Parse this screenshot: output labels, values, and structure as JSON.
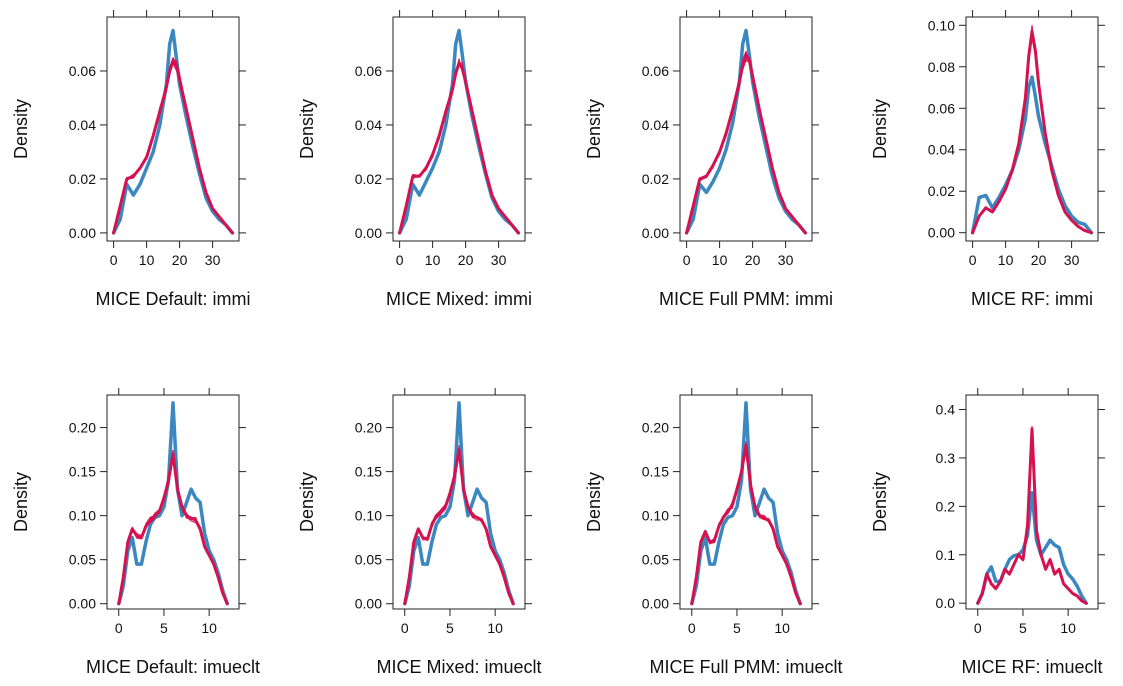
{
  "colors": {
    "observed": "#3b88c0",
    "imputed": "#d6114f"
  },
  "chart_data": [
    {
      "type": "line",
      "title": "MICE Default: immi",
      "xlabel": "MICE Default: immi",
      "ylabel": "Density",
      "xlim": [
        -2,
        38
      ],
      "ylim": [
        -0.003,
        0.08
      ],
      "xticks": [
        0,
        10,
        20,
        30
      ],
      "yticks": [
        0,
        0.02,
        0.04,
        0.06
      ],
      "ytick_labels": [
        "0.00",
        "0.02",
        "0.04",
        "0.06"
      ],
      "series": [
        {
          "role": "observed",
          "x": [
            0,
            2,
            4,
            6,
            8,
            10,
            12,
            14,
            16,
            17,
            18,
            19,
            20,
            22,
            24,
            26,
            28,
            30,
            32,
            34,
            36
          ],
          "y": [
            0,
            0.005,
            0.018,
            0.014,
            0.018,
            0.024,
            0.03,
            0.04,
            0.055,
            0.07,
            0.075,
            0.065,
            0.055,
            0.043,
            0.032,
            0.022,
            0.013,
            0.008,
            0.005,
            0.003,
            0
          ]
        },
        {
          "role": "imputed",
          "x": [
            0,
            2,
            4,
            6,
            8,
            10,
            12,
            14,
            16,
            17,
            18,
            19,
            20,
            22,
            24,
            26,
            28,
            30,
            32,
            34,
            36
          ],
          "y": [
            0,
            0.01,
            0.02,
            0.021,
            0.024,
            0.028,
            0.036,
            0.045,
            0.054,
            0.06,
            0.064,
            0.062,
            0.057,
            0.046,
            0.035,
            0.024,
            0.015,
            0.009,
            0.006,
            0.003,
            0
          ]
        }
      ]
    },
    {
      "type": "line",
      "title": "MICE Mixed: immi",
      "xlabel": "MICE Mixed: immi",
      "ylabel": "Density",
      "xlim": [
        -2,
        38
      ],
      "ylim": [
        -0.003,
        0.08
      ],
      "xticks": [
        0,
        10,
        20,
        30
      ],
      "yticks": [
        0,
        0.02,
        0.04,
        0.06
      ],
      "ytick_labels": [
        "0.00",
        "0.02",
        "0.04",
        "0.06"
      ],
      "series": [
        {
          "role": "observed",
          "x": [
            0,
            2,
            4,
            6,
            8,
            10,
            12,
            14,
            16,
            17,
            18,
            19,
            20,
            22,
            24,
            26,
            28,
            30,
            32,
            34,
            36
          ],
          "y": [
            0,
            0.005,
            0.018,
            0.014,
            0.019,
            0.024,
            0.03,
            0.04,
            0.055,
            0.07,
            0.075,
            0.066,
            0.056,
            0.043,
            0.032,
            0.022,
            0.013,
            0.008,
            0.005,
            0.003,
            0
          ]
        },
        {
          "role": "imputed",
          "x": [
            0,
            2,
            4,
            6,
            8,
            10,
            12,
            14,
            16,
            17,
            18,
            19,
            20,
            22,
            24,
            26,
            28,
            30,
            32,
            34,
            36
          ],
          "y": [
            0,
            0.01,
            0.021,
            0.021,
            0.024,
            0.029,
            0.036,
            0.045,
            0.053,
            0.059,
            0.063,
            0.061,
            0.056,
            0.045,
            0.034,
            0.023,
            0.014,
            0.009,
            0.006,
            0.003,
            0
          ]
        }
      ]
    },
    {
      "type": "line",
      "title": "MICE Full PMM: immi",
      "xlabel": "MICE Full PMM: immi",
      "ylabel": "Density",
      "xlim": [
        -2,
        38
      ],
      "ylim": [
        -0.003,
        0.08
      ],
      "xticks": [
        0,
        10,
        20,
        30
      ],
      "yticks": [
        0,
        0.02,
        0.04,
        0.06
      ],
      "ytick_labels": [
        "0.00",
        "0.02",
        "0.04",
        "0.06"
      ],
      "series": [
        {
          "role": "observed",
          "x": [
            0,
            2,
            4,
            6,
            8,
            10,
            12,
            14,
            16,
            17,
            18,
            19,
            20,
            22,
            24,
            26,
            28,
            30,
            32,
            34,
            36
          ],
          "y": [
            0,
            0.005,
            0.018,
            0.015,
            0.019,
            0.024,
            0.031,
            0.041,
            0.056,
            0.07,
            0.075,
            0.066,
            0.056,
            0.043,
            0.032,
            0.021,
            0.013,
            0.008,
            0.005,
            0.003,
            0
          ]
        },
        {
          "role": "imputed",
          "x": [
            0,
            2,
            4,
            6,
            8,
            10,
            12,
            14,
            16,
            17,
            18,
            19,
            20,
            22,
            24,
            26,
            28,
            30,
            32,
            34,
            36
          ],
          "y": [
            0,
            0.01,
            0.02,
            0.021,
            0.025,
            0.03,
            0.037,
            0.046,
            0.056,
            0.062,
            0.066,
            0.064,
            0.058,
            0.046,
            0.035,
            0.024,
            0.015,
            0.009,
            0.006,
            0.003,
            0
          ]
        }
      ]
    },
    {
      "type": "line",
      "title": "MICE RF: immi",
      "xlabel": "MICE RF: immi",
      "ylabel": "Density",
      "xlim": [
        -2,
        38
      ],
      "ylim": [
        -0.004,
        0.104
      ],
      "xticks": [
        0,
        10,
        20,
        30
      ],
      "yticks": [
        0,
        0.02,
        0.04,
        0.06,
        0.08,
        0.1
      ],
      "ytick_labels": [
        "0.00",
        "0.02",
        "0.04",
        "0.06",
        "0.08",
        "0.10"
      ],
      "series": [
        {
          "role": "observed",
          "x": [
            0,
            2,
            4,
            6,
            8,
            10,
            12,
            14,
            16,
            17,
            18,
            19,
            20,
            22,
            24,
            26,
            28,
            30,
            32,
            34,
            36
          ],
          "y": [
            0,
            0.017,
            0.018,
            0.012,
            0.017,
            0.023,
            0.03,
            0.04,
            0.055,
            0.07,
            0.075,
            0.066,
            0.056,
            0.043,
            0.032,
            0.021,
            0.013,
            0.008,
            0.005,
            0.004,
            0
          ]
        },
        {
          "role": "imputed",
          "x": [
            0,
            2,
            4,
            6,
            8,
            10,
            12,
            14,
            16,
            17,
            18,
            19,
            20,
            22,
            24,
            26,
            28,
            30,
            32,
            34,
            36
          ],
          "y": [
            0,
            0.008,
            0.012,
            0.01,
            0.015,
            0.021,
            0.03,
            0.043,
            0.065,
            0.085,
            0.097,
            0.088,
            0.072,
            0.048,
            0.03,
            0.018,
            0.01,
            0.006,
            0.003,
            0.001,
            0
          ]
        }
      ]
    },
    {
      "type": "line",
      "title": "MICE Default: imueclt",
      "xlabel": "MICE Default: imueclt",
      "ylabel": "Density",
      "xlim": [
        -1.3,
        13.3
      ],
      "ylim": [
        -0.006,
        0.237
      ],
      "xticks": [
        0,
        5,
        10
      ],
      "yticks": [
        0,
        0.05,
        0.1,
        0.15,
        0.2
      ],
      "ytick_labels": [
        "0.00",
        "0.05",
        "0.10",
        "0.15",
        "0.20"
      ],
      "series": [
        {
          "role": "observed",
          "x": [
            0,
            0.5,
            1,
            1.5,
            2,
            2.5,
            3,
            3.5,
            4,
            4.5,
            5,
            5.5,
            6,
            6.5,
            7,
            7.5,
            8,
            8.5,
            9,
            9.5,
            10,
            10.5,
            11,
            11.5,
            12
          ],
          "y": [
            0,
            0.02,
            0.06,
            0.075,
            0.045,
            0.045,
            0.07,
            0.09,
            0.098,
            0.1,
            0.11,
            0.14,
            0.228,
            0.13,
            0.1,
            0.115,
            0.13,
            0.12,
            0.115,
            0.08,
            0.06,
            0.05,
            0.035,
            0.015,
            0
          ]
        },
        {
          "role": "imputed",
          "x": [
            0,
            0.5,
            1,
            1.5,
            2,
            2.5,
            3,
            3.5,
            4,
            4.5,
            5,
            5.5,
            6,
            6.5,
            7,
            7.5,
            8,
            8.5,
            9,
            9.5,
            10,
            10.5,
            11,
            11.5,
            12
          ],
          "y": [
            0,
            0.03,
            0.07,
            0.085,
            0.077,
            0.075,
            0.088,
            0.095,
            0.1,
            0.105,
            0.12,
            0.14,
            0.17,
            0.13,
            0.11,
            0.1,
            0.097,
            0.095,
            0.085,
            0.065,
            0.055,
            0.045,
            0.03,
            0.012,
            0
          ]
        }
      ]
    },
    {
      "type": "line",
      "title": "MICE Mixed: imueclt",
      "xlabel": "MICE Mixed: imueclt",
      "ylabel": "Density",
      "xlim": [
        -1.3,
        13.3
      ],
      "ylim": [
        -0.006,
        0.237
      ],
      "xticks": [
        0,
        5,
        10
      ],
      "yticks": [
        0,
        0.05,
        0.1,
        0.15,
        0.2
      ],
      "ytick_labels": [
        "0.00",
        "0.05",
        "0.10",
        "0.15",
        "0.20"
      ],
      "series": [
        {
          "role": "observed",
          "x": [
            0,
            0.5,
            1,
            1.5,
            2,
            2.5,
            3,
            3.5,
            4,
            4.5,
            5,
            5.5,
            6,
            6.5,
            7,
            7.5,
            8,
            8.5,
            9,
            9.5,
            10,
            10.5,
            11,
            11.5,
            12
          ],
          "y": [
            0,
            0.02,
            0.06,
            0.075,
            0.045,
            0.045,
            0.07,
            0.09,
            0.098,
            0.1,
            0.11,
            0.14,
            0.228,
            0.13,
            0.1,
            0.115,
            0.13,
            0.12,
            0.115,
            0.08,
            0.06,
            0.05,
            0.035,
            0.015,
            0
          ]
        },
        {
          "role": "imputed",
          "x": [
            0,
            0.5,
            1,
            1.5,
            2,
            2.5,
            3,
            3.5,
            4,
            4.5,
            5,
            5.5,
            6,
            6.5,
            7,
            7.5,
            8,
            8.5,
            9,
            9.5,
            10,
            10.5,
            11,
            11.5,
            12
          ],
          "y": [
            0,
            0.03,
            0.07,
            0.085,
            0.075,
            0.073,
            0.09,
            0.1,
            0.105,
            0.11,
            0.125,
            0.145,
            0.175,
            0.13,
            0.11,
            0.1,
            0.098,
            0.095,
            0.085,
            0.065,
            0.055,
            0.045,
            0.03,
            0.012,
            0
          ]
        }
      ]
    },
    {
      "type": "line",
      "title": "MICE Full PMM: imueclt",
      "xlabel": "MICE Full PMM: imueclt",
      "ylabel": "Density",
      "xlim": [
        -1.3,
        13.3
      ],
      "ylim": [
        -0.006,
        0.237
      ],
      "xticks": [
        0,
        5,
        10
      ],
      "yticks": [
        0,
        0.05,
        0.1,
        0.15,
        0.2
      ],
      "ytick_labels": [
        "0.00",
        "0.05",
        "0.10",
        "0.15",
        "0.20"
      ],
      "series": [
        {
          "role": "observed",
          "x": [
            0,
            0.5,
            1,
            1.5,
            2,
            2.5,
            3,
            3.5,
            4,
            4.5,
            5,
            5.5,
            6,
            6.5,
            7,
            7.5,
            8,
            8.5,
            9,
            9.5,
            10,
            10.5,
            11,
            11.5,
            12
          ],
          "y": [
            0,
            0.02,
            0.06,
            0.075,
            0.045,
            0.045,
            0.07,
            0.09,
            0.098,
            0.1,
            0.11,
            0.14,
            0.228,
            0.13,
            0.1,
            0.115,
            0.13,
            0.12,
            0.115,
            0.08,
            0.06,
            0.05,
            0.035,
            0.015,
            0
          ]
        },
        {
          "role": "imputed",
          "x": [
            0,
            0.5,
            1,
            1.5,
            2,
            2.5,
            3,
            3.5,
            4,
            4.5,
            5,
            5.5,
            6,
            6.5,
            7,
            7.5,
            8,
            8.5,
            9,
            9.5,
            10,
            10.5,
            11,
            11.5,
            12
          ],
          "y": [
            0,
            0.03,
            0.07,
            0.082,
            0.07,
            0.072,
            0.088,
            0.098,
            0.105,
            0.112,
            0.13,
            0.15,
            0.18,
            0.135,
            0.11,
            0.1,
            0.097,
            0.095,
            0.085,
            0.065,
            0.055,
            0.045,
            0.03,
            0.012,
            0
          ]
        }
      ]
    },
    {
      "type": "line",
      "title": "MICE RF: imueclt",
      "xlabel": "MICE RF: imueclt",
      "ylabel": "Density",
      "xlim": [
        -1.3,
        13.3
      ],
      "ylim": [
        -0.012,
        0.43
      ],
      "xticks": [
        0,
        5,
        10
      ],
      "yticks": [
        0,
        0.1,
        0.2,
        0.3,
        0.4
      ],
      "ytick_labels": [
        "0.0",
        "0.1",
        "0.2",
        "0.3",
        "0.4"
      ],
      "series": [
        {
          "role": "observed",
          "x": [
            0,
            0.5,
            1,
            1.5,
            2,
            2.5,
            3,
            3.5,
            4,
            4.5,
            5,
            5.5,
            6,
            6.5,
            7,
            7.5,
            8,
            8.5,
            9,
            9.5,
            10,
            10.5,
            11,
            11.5,
            12
          ],
          "y": [
            0,
            0.02,
            0.06,
            0.075,
            0.045,
            0.045,
            0.07,
            0.09,
            0.098,
            0.1,
            0.11,
            0.14,
            0.228,
            0.13,
            0.1,
            0.115,
            0.13,
            0.12,
            0.115,
            0.08,
            0.06,
            0.05,
            0.035,
            0.015,
            0
          ]
        },
        {
          "role": "imputed",
          "x": [
            0,
            0.5,
            1,
            1.5,
            2,
            2.5,
            3,
            3.5,
            4,
            4.5,
            5,
            5.5,
            6,
            6.5,
            7,
            7.5,
            8,
            8.5,
            9,
            9.5,
            10,
            10.5,
            11,
            11.5,
            12
          ],
          "y": [
            0,
            0.02,
            0.06,
            0.04,
            0.03,
            0.045,
            0.07,
            0.06,
            0.08,
            0.1,
            0.09,
            0.16,
            0.36,
            0.15,
            0.1,
            0.07,
            0.09,
            0.06,
            0.07,
            0.04,
            0.03,
            0.02,
            0.015,
            0.005,
            0
          ]
        }
      ]
    }
  ]
}
